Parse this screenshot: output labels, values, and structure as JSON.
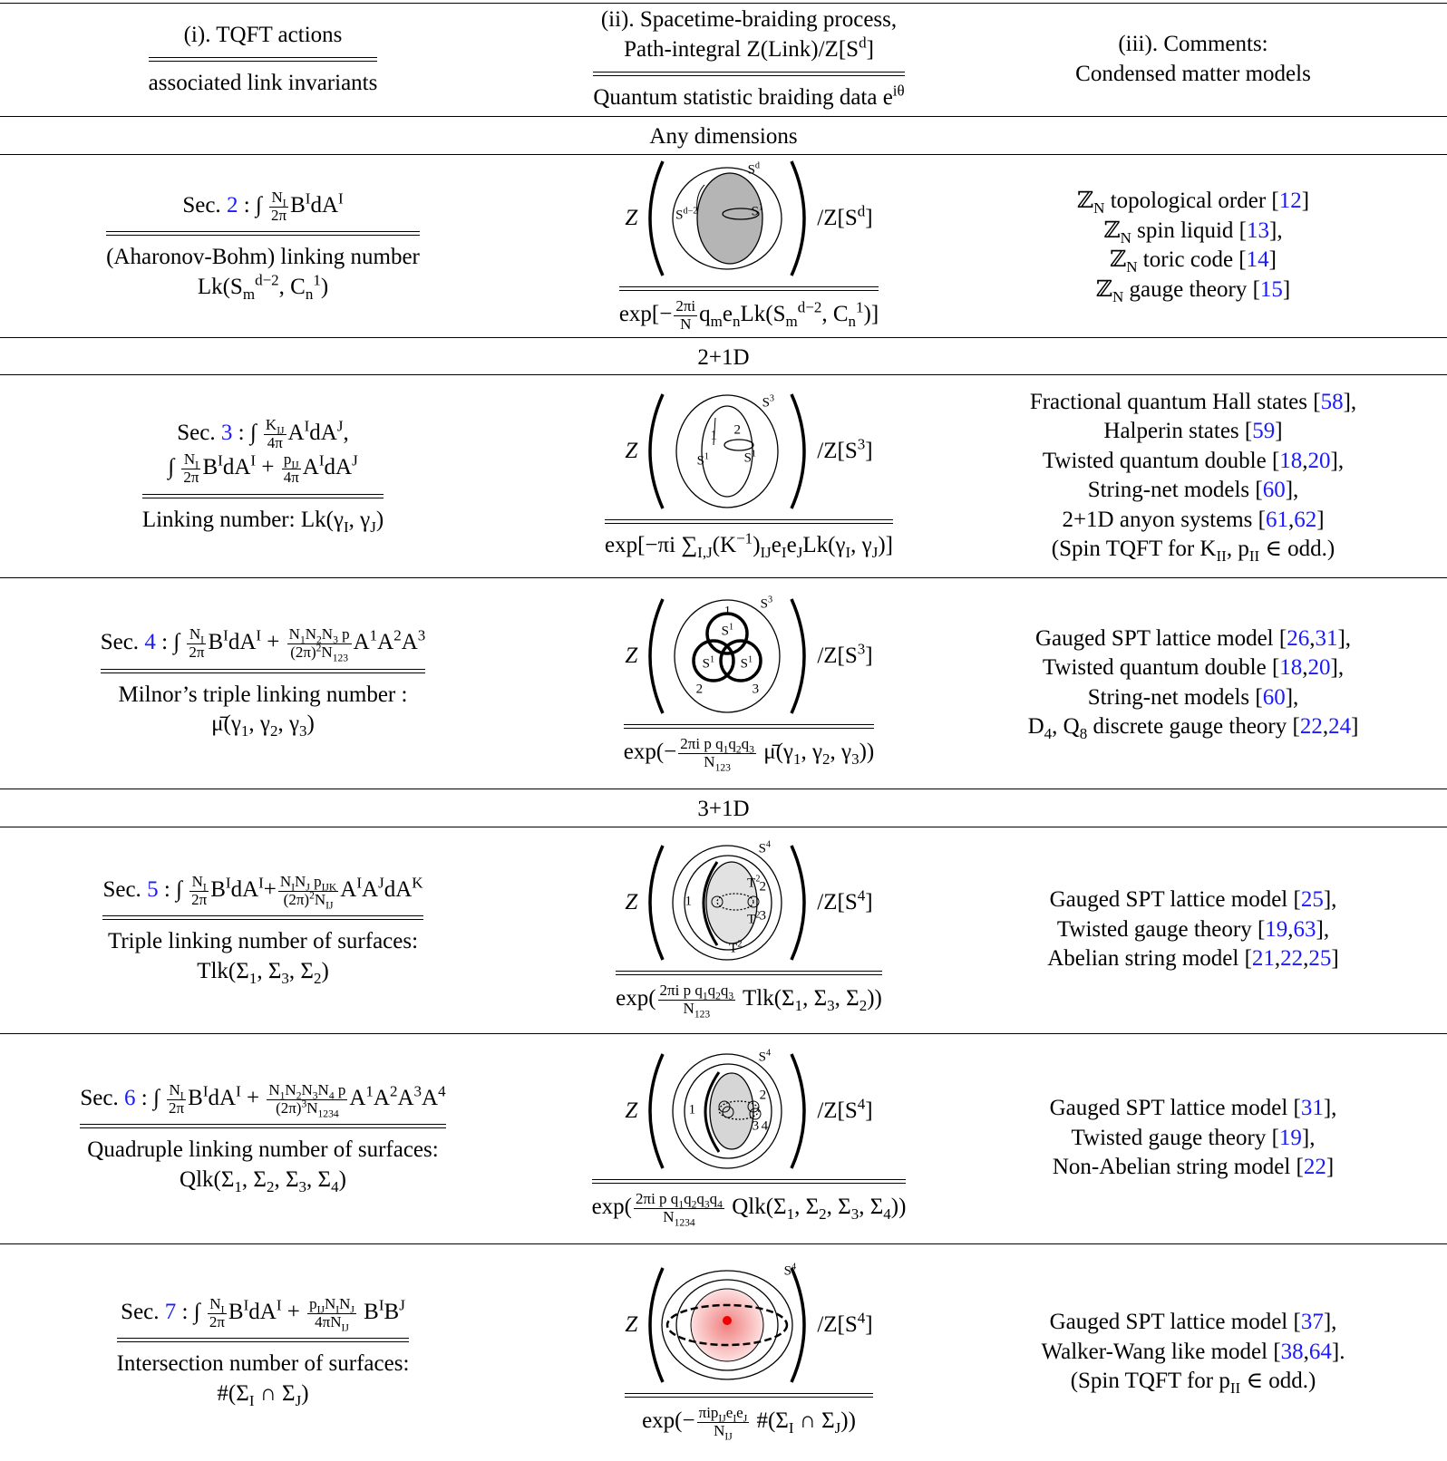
{
  "header": {
    "col1": {
      "top": [
        [
          "(i). TQFT actions"
        ]
      ],
      "bottom": [
        [
          "associated link invariants"
        ]
      ]
    },
    "col2": {
      "top": [
        [
          "(ii). Spacetime-braiding process,"
        ],
        [
          "Path-integral Z(Link)/Z[S",
          {
            "sup": "d"
          },
          "]"
        ]
      ],
      "bottom": [
        [
          "Quantum statistic braiding data e",
          {
            "sup": "iθ"
          }
        ]
      ]
    },
    "col3": [
      [
        "(iii). Comments:"
      ],
      [
        "Condensed matter models"
      ]
    ]
  },
  "sections": [
    "Any dimensions",
    "2+1D",
    "3+1D"
  ],
  "rows": [
    {
      "action": [
        [
          "Sec. ",
          {
            "link": "2"
          },
          " : ∫ ",
          {
            "frac": [
              [
                "N",
                {
                  "sub": "I"
                }
              ],
              [
                "2π"
              ]
            ]
          },
          "B",
          {
            "sup": "I"
          },
          "dA",
          {
            "sup": "I"
          }
        ]
      ],
      "invariant": [
        [
          "(Aharonov-Bohm) linking number"
        ],
        [
          "Lk(S",
          {
            "sub": "m"
          },
          {
            "sup": "d−2"
          },
          ", C",
          {
            "sub": "n"
          },
          {
            "sup": "1"
          },
          ")"
        ]
      ],
      "Z": "Z",
      "labels": [
        [
          "S",
          {
            "sup": "d"
          }
        ],
        [
          "S",
          {
            "sup": "d−2"
          }
        ],
        [
          "S",
          {
            "sup": "1"
          }
        ]
      ],
      "norm": [
        "/Z[S",
        {
          "sup": "d"
        },
        "]"
      ],
      "braiding": [
        "exp[−",
        {
          "frac": [
            [
              "2πi"
            ],
            [
              "N"
            ]
          ]
        },
        "q",
        {
          "sub": "m"
        },
        "e",
        {
          "sub": "n"
        },
        "Lk(S",
        {
          "sub": "m"
        },
        {
          "sup": "d−2"
        },
        ", C",
        {
          "sub": "n"
        },
        {
          "sup": "1"
        },
        ")]"
      ],
      "comments": [
        [
          "ℤ",
          {
            "sub": "N"
          },
          " topological order [",
          {
            "link": "12"
          },
          "]"
        ],
        [
          "ℤ",
          {
            "sub": "N"
          },
          " spin liquid [",
          {
            "link": "13"
          },
          "],"
        ],
        [
          "ℤ",
          {
            "sub": "N"
          },
          " toric code [",
          {
            "link": "14"
          },
          "]"
        ],
        [
          "ℤ",
          {
            "sub": "N"
          },
          " gauge theory [",
          {
            "link": "15"
          },
          "]"
        ]
      ]
    },
    {
      "action": [
        [
          "Sec. ",
          {
            "link": "3"
          },
          " : ∫ ",
          {
            "frac": [
              [
                "K",
                {
                  "sub": "IJ"
                }
              ],
              [
                "4π"
              ]
            ]
          },
          "A",
          {
            "sup": "I"
          },
          "dA",
          {
            "sup": "J"
          },
          ","
        ],
        [
          "∫ ",
          {
            "frac": [
              [
                "N",
                {
                  "sub": "I"
                }
              ],
              [
                "2π"
              ]
            ]
          },
          "B",
          {
            "sup": "I"
          },
          "dA",
          {
            "sup": "I"
          },
          " + ",
          {
            "frac": [
              [
                "p",
                {
                  "sub": "IJ"
                }
              ],
              [
                "4π"
              ]
            ]
          },
          "A",
          {
            "sup": "I"
          },
          "dA",
          {
            "sup": "J"
          }
        ]
      ],
      "invariant": [
        [
          "Linking number: Lk(γ",
          {
            "sub": "I"
          },
          ", γ",
          {
            "sub": "J"
          },
          ")"
        ]
      ],
      "Z": "Z",
      "labels": [
        [
          "S",
          {
            "sup": "3"
          }
        ],
        [
          "1"
        ],
        [
          "2"
        ],
        [
          "S",
          {
            "sup": "1"
          }
        ],
        [
          "S",
          {
            "sup": "1"
          }
        ]
      ],
      "norm": [
        "/Z[S",
        {
          "sup": "3"
        },
        "]"
      ],
      "braiding": [
        "exp[−πi ∑",
        {
          "sub": "I,J"
        },
        "(K",
        {
          "sup": "−1"
        },
        ")",
        {
          "sub": "IJ"
        },
        "e",
        {
          "sub": "I"
        },
        "e",
        {
          "sub": "J"
        },
        "Lk(γ",
        {
          "sub": "I"
        },
        ", γ",
        {
          "sub": "J"
        },
        ")]"
      ],
      "comments": [
        [
          "Fractional quantum Hall states [",
          {
            "link": "58"
          },
          "],"
        ],
        [
          "Halperin states [",
          {
            "link": "59"
          },
          "]"
        ],
        [
          "Twisted quantum double [",
          {
            "link": "18"
          },
          ",",
          {
            "link": "20"
          },
          "],"
        ],
        [
          "String-net models [",
          {
            "link": "60"
          },
          "],"
        ],
        [
          "2+1D anyon systems [",
          {
            "link": "61"
          },
          ",",
          {
            "link": "62"
          },
          "]"
        ],
        [
          "(Spin TQFT for K",
          {
            "sub": "II"
          },
          ", p",
          {
            "sub": "II"
          },
          " ∈ odd.)"
        ]
      ]
    },
    {
      "action": [
        [
          "Sec. ",
          {
            "link": "4"
          },
          " : ∫ ",
          {
            "frac": [
              [
                "N",
                {
                  "sub": "I"
                }
              ],
              [
                "2π"
              ]
            ]
          },
          "B",
          {
            "sup": "I"
          },
          "dA",
          {
            "sup": "I"
          },
          " + ",
          {
            "frac": [
              [
                "N",
                {
                  "sub": "1"
                },
                "N",
                {
                  "sub": "2"
                },
                "N",
                {
                  "sub": "3"
                },
                " p"
              ],
              [
                "(2π)",
                {
                  "sup": "2"
                },
                "N",
                {
                  "sub": "123"
                }
              ]
            ]
          },
          "A",
          {
            "sup": "1"
          },
          "A",
          {
            "sup": "2"
          },
          "A",
          {
            "sup": "3"
          }
        ]
      ],
      "invariant": [
        [
          "Milnor’s triple linking number :"
        ],
        [
          "μ̄(γ",
          {
            "sub": "1"
          },
          ", γ",
          {
            "sub": "2"
          },
          ", γ",
          {
            "sub": "3"
          },
          ")"
        ]
      ],
      "Z": "Z",
      "labels": [
        [
          "S",
          {
            "sup": "3"
          }
        ],
        [
          "1"
        ],
        [
          "S",
          {
            "sup": "1"
          }
        ],
        [
          "S",
          {
            "sup": "1"
          }
        ],
        [
          "S",
          {
            "sup": "1"
          }
        ],
        [
          "2"
        ],
        [
          "3"
        ]
      ],
      "norm": [
        "/Z[S",
        {
          "sup": "3"
        },
        "]"
      ],
      "braiding": [
        "exp(−",
        {
          "frac": [
            [
              "2πi p q",
              {
                "sub": "1"
              },
              "q",
              {
                "sub": "2"
              },
              "q",
              {
                "sub": "3"
              }
            ],
            [
              "N",
              {
                "sub": "123"
              }
            ]
          ]
        },
        " μ̄(γ",
        {
          "sub": "1"
        },
        ", γ",
        {
          "sub": "2"
        },
        ", γ",
        {
          "sub": "3"
        },
        "))"
      ],
      "comments": [
        [
          "Gauged SPT lattice model [",
          {
            "link": "26"
          },
          ",",
          {
            "link": "31"
          },
          "],"
        ],
        [
          "Twisted quantum double [",
          {
            "link": "18"
          },
          ",",
          {
            "link": "20"
          },
          "],"
        ],
        [
          "String-net models [",
          {
            "link": "60"
          },
          "],"
        ],
        [
          "D",
          {
            "sub": "4"
          },
          ", Q",
          {
            "sub": "8"
          },
          " discrete gauge theory [",
          {
            "link": "22"
          },
          ",",
          {
            "link": "24"
          },
          "]"
        ]
      ]
    },
    {
      "action": [
        [
          "Sec. ",
          {
            "link": "5"
          },
          " : ∫ ",
          {
            "frac": [
              [
                "N",
                {
                  "sub": "I"
                }
              ],
              [
                "2π"
              ]
            ]
          },
          "B",
          {
            "sup": "I"
          },
          "dA",
          {
            "sup": "I"
          },
          "+",
          {
            "frac": [
              [
                "N",
                {
                  "sub": "I"
                },
                "N",
                {
                  "sub": "J"
                },
                " p",
                {
                  "sub": "IJK"
                }
              ],
              [
                "(2π)",
                {
                  "sup": "2"
                },
                "N",
                {
                  "sub": "IJ"
                }
              ]
            ]
          },
          "A",
          {
            "sup": "I"
          },
          "A",
          {
            "sup": "J"
          },
          "dA",
          {
            "sup": "K"
          }
        ]
      ],
      "invariant": [
        [
          "Triple linking number of surfaces:"
        ],
        [
          "Tlk(Σ",
          {
            "sub": "1"
          },
          ", Σ",
          {
            "sub": "3"
          },
          ", Σ",
          {
            "sub": "2"
          },
          ")"
        ]
      ],
      "Z": "Z",
      "labels": [
        [
          "S",
          {
            "sup": "4"
          }
        ],
        [
          "1"
        ],
        [
          "2"
        ],
        [
          "3"
        ],
        [
          "T",
          {
            "sup": "2"
          }
        ],
        [
          "T",
          {
            "sup": "2"
          }
        ],
        [
          "T",
          {
            "sup": "2"
          }
        ]
      ],
      "norm": [
        "/Z[S",
        {
          "sup": "4"
        },
        "]"
      ],
      "braiding": [
        "exp(",
        {
          "frac": [
            [
              "2πi p q",
              {
                "sub": "1"
              },
              "q",
              {
                "sub": "2"
              },
              "q",
              {
                "sub": "3"
              }
            ],
            [
              "N",
              {
                "sub": "123"
              }
            ]
          ]
        },
        " Tlk(Σ",
        {
          "sub": "1"
        },
        ", Σ",
        {
          "sub": "3"
        },
        ", Σ",
        {
          "sub": "2"
        },
        "))"
      ],
      "comments": [
        [
          "Gauged SPT lattice model [",
          {
            "link": "25"
          },
          "],"
        ],
        [
          "Twisted gauge theory [",
          {
            "link": "19"
          },
          ",",
          {
            "link": "63"
          },
          "],"
        ],
        [
          "Abelian string model [",
          {
            "link": "21"
          },
          ",",
          {
            "link": "22"
          },
          ",",
          {
            "link": "25"
          },
          "]"
        ]
      ]
    },
    {
      "action": [
        [
          "Sec. ",
          {
            "link": "6"
          },
          " : ∫ ",
          {
            "frac": [
              [
                "N",
                {
                  "sub": "I"
                }
              ],
              [
                "2π"
              ]
            ]
          },
          "B",
          {
            "sup": "I"
          },
          "dA",
          {
            "sup": "I"
          },
          " + ",
          {
            "frac": [
              [
                "N",
                {
                  "sub": "1"
                },
                "N",
                {
                  "sub": "2"
                },
                "N",
                {
                  "sub": "3"
                },
                "N",
                {
                  "sub": "4"
                },
                " p"
              ],
              [
                "(2π)",
                {
                  "sup": "3"
                },
                "N",
                {
                  "sub": "1234"
                }
              ]
            ]
          },
          "A",
          {
            "sup": "1"
          },
          "A",
          {
            "sup": "2"
          },
          "A",
          {
            "sup": "3"
          },
          "A",
          {
            "sup": "4"
          }
        ]
      ],
      "invariant": [
        [
          "Quadruple linking number of surfaces:"
        ],
        [
          "Qlk(Σ",
          {
            "sub": "1"
          },
          ", Σ",
          {
            "sub": "2"
          },
          ", Σ",
          {
            "sub": "3"
          },
          ", Σ",
          {
            "sub": "4"
          },
          ")"
        ]
      ],
      "Z": "Z",
      "labels": [
        [
          "S",
          {
            "sup": "4"
          }
        ],
        [
          "1"
        ],
        [
          "2"
        ],
        [
          "3"
        ],
        [
          "4"
        ]
      ],
      "norm": [
        "/Z[S",
        {
          "sup": "4"
        },
        "]"
      ],
      "braiding": [
        "exp(",
        {
          "frac": [
            [
              "2πi p q",
              {
                "sub": "1"
              },
              "q",
              {
                "sub": "2"
              },
              "q",
              {
                "sub": "3"
              },
              "q",
              {
                "sub": "4"
              }
            ],
            [
              "N",
              {
                "sub": "1234"
              }
            ]
          ]
        },
        " Qlk(Σ",
        {
          "sub": "1"
        },
        ", Σ",
        {
          "sub": "2"
        },
        ", Σ",
        {
          "sub": "3"
        },
        ", Σ",
        {
          "sub": "4"
        },
        "))"
      ],
      "comments": [
        [
          "Gauged SPT lattice model [",
          {
            "link": "31"
          },
          "],"
        ],
        [
          "Twisted gauge theory [",
          {
            "link": "19"
          },
          "],"
        ],
        [
          "Non-Abelian string model [",
          {
            "link": "22"
          },
          "]"
        ]
      ]
    },
    {
      "action": [
        [
          "Sec. ",
          {
            "link": "7"
          },
          " : ∫ ",
          {
            "frac": [
              [
                "N",
                {
                  "sub": "I"
                }
              ],
              [
                "2π"
              ]
            ]
          },
          "B",
          {
            "sup": "I"
          },
          "dA",
          {
            "sup": "I"
          },
          " + ",
          {
            "frac": [
              [
                "p",
                {
                  "sub": "IJ"
                },
                "N",
                {
                  "sub": "I"
                },
                "N",
                {
                  "sub": "J"
                }
              ],
              [
                "4πN",
                {
                  "sub": "IJ"
                }
              ]
            ]
          },
          " B",
          {
            "sup": "I"
          },
          "B",
          {
            "sup": "J"
          }
        ]
      ],
      "invariant": [
        [
          "Intersection number of surfaces:"
        ],
        [
          "#(Σ",
          {
            "sub": "I"
          },
          " ∩ Σ",
          {
            "sub": "J"
          },
          ")"
        ]
      ],
      "Z": "Z",
      "labels": [
        [
          "S",
          {
            "sup": "4"
          }
        ]
      ],
      "norm": [
        "/Z[S",
        {
          "sup": "4"
        },
        "]"
      ],
      "braiding": [
        "exp(−",
        {
          "frac": [
            [
              "πip",
              {
                "sub": "IJ"
              },
              "e",
              {
                "sub": "I"
              },
              "e",
              {
                "sub": "J"
              }
            ],
            [
              "N",
              {
                "sub": "IJ"
              }
            ]
          ]
        },
        " #(Σ",
        {
          "sub": "I"
        },
        " ∩ Σ",
        {
          "sub": "J"
        },
        "))"
      ],
      "comments": [
        [
          "Gauged SPT lattice model [",
          {
            "link": "37"
          },
          "],"
        ],
        [
          "Walker-Wang like model [",
          {
            "link": "38"
          },
          ",",
          {
            "link": "64"
          },
          "]."
        ],
        [
          "(Spin TQFT for p",
          {
            "sub": "II"
          },
          " ∈ odd.)"
        ]
      ]
    }
  ]
}
